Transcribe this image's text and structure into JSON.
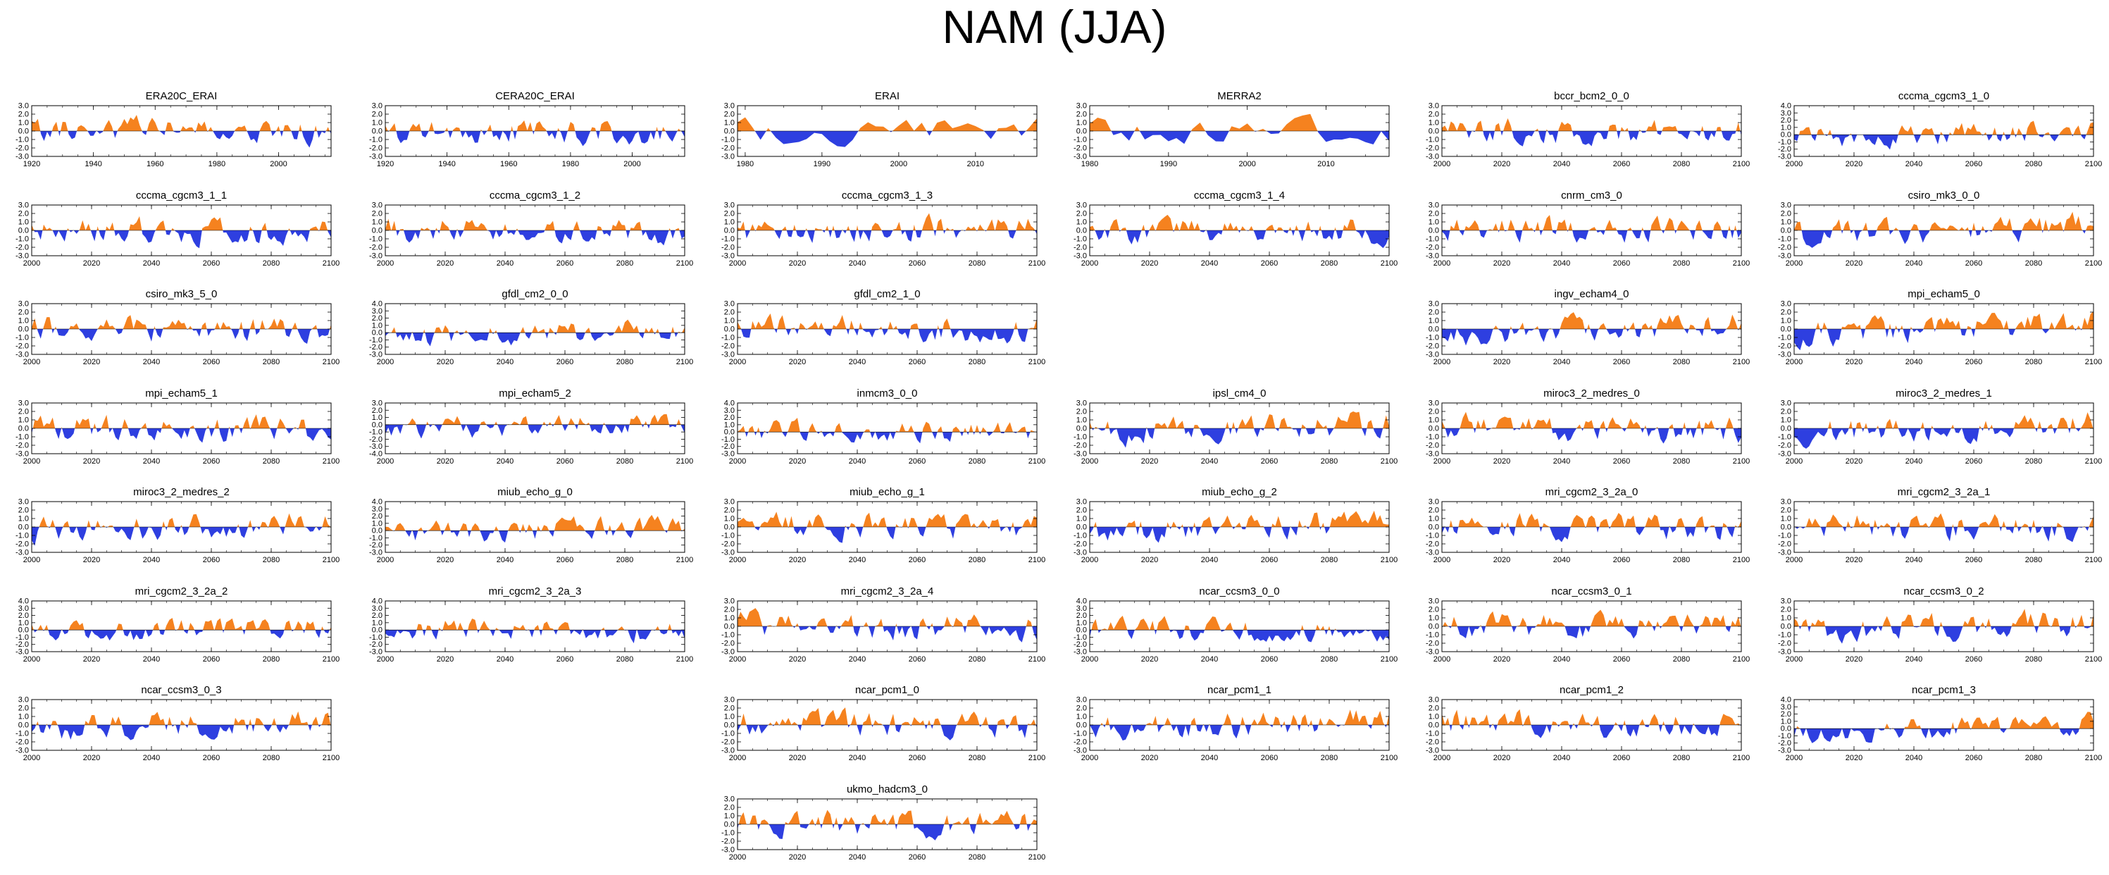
{
  "title": "NAM (JJA)",
  "colors": {
    "positive": "#f5821f",
    "negative": "#2e3fe0",
    "axis": "#000000"
  },
  "chart_data": [
    {
      "type": "area",
      "title": "ERA20C_ERAI",
      "xlim": [
        1920,
        2017
      ],
      "xticks": [
        "1920",
        "1940",
        "1960",
        "1980",
        "2000"
      ],
      "yticks": [
        "3.0",
        "2.0",
        "1.0",
        "0.0",
        "-1.0",
        "-2.0",
        "-3.0"
      ],
      "ylim": [
        -3,
        3
      ],
      "seed": 11
    },
    {
      "type": "area",
      "title": "CERA20C_ERAI",
      "xlim": [
        1920,
        2017
      ],
      "xticks": [
        "1920",
        "1940",
        "1960",
        "1980",
        "2000"
      ],
      "yticks": [
        "3.0",
        "2.0",
        "1.0",
        "0.0",
        "-1.0",
        "-2.0",
        "-3.0"
      ],
      "ylim": [
        -3,
        3
      ],
      "seed": 23
    },
    {
      "type": "area",
      "title": "ERAI",
      "xlim": [
        1979,
        2018
      ],
      "xticks": [
        "1980",
        "1990",
        "2000",
        "2010"
      ],
      "yticks": [
        "3.0",
        "2.0",
        "1.0",
        "0.0",
        "-1.0",
        "-2.0",
        "-3.0"
      ],
      "ylim": [
        -3,
        3
      ],
      "seed": 37
    },
    {
      "type": "area",
      "title": "MERRA2",
      "xlim": [
        1980,
        2018
      ],
      "xticks": [
        "1980",
        "1990",
        "2000",
        "2010"
      ],
      "yticks": [
        "3.0",
        "2.0",
        "1.0",
        "0.0",
        "-1.0",
        "-2.0",
        "-3.0"
      ],
      "ylim": [
        -3,
        3
      ],
      "seed": 41
    },
    {
      "type": "area",
      "title": "bccr_bcm2_0_0",
      "xlim": [
        2000,
        2100
      ],
      "xticks": [
        "2000",
        "2020",
        "2040",
        "2060",
        "2080",
        "2100"
      ],
      "yticks": [
        "3.0",
        "2.0",
        "1.0",
        "0.0",
        "-1.0",
        "-2.0",
        "-3.0"
      ],
      "ylim": [
        -3,
        3
      ],
      "seed": 53
    },
    {
      "type": "area",
      "title": "cccma_cgcm3_1_0",
      "xlim": [
        2000,
        2100
      ],
      "xticks": [
        "2000",
        "2020",
        "2040",
        "2060",
        "2080",
        "2100"
      ],
      "yticks": [
        "4.0",
        "3.0",
        "2.0",
        "1.0",
        "0.0",
        "-1.0",
        "-2.0",
        "-3.0"
      ],
      "ylim": [
        -3,
        4
      ],
      "seed": 61
    },
    {
      "type": "area",
      "title": "cccma_cgcm3_1_1",
      "xlim": [
        2000,
        2100
      ],
      "xticks": [
        "2000",
        "2020",
        "2040",
        "2060",
        "2080",
        "2100"
      ],
      "yticks": [
        "3.0",
        "2.0",
        "1.0",
        "0.0",
        "-1.0",
        "-2.0",
        "-3.0"
      ],
      "ylim": [
        -3,
        3
      ],
      "seed": 71
    },
    {
      "type": "area",
      "title": "cccma_cgcm3_1_2",
      "xlim": [
        2000,
        2100
      ],
      "xticks": [
        "2000",
        "2020",
        "2040",
        "2060",
        "2080",
        "2100"
      ],
      "yticks": [
        "3.0",
        "2.0",
        "1.0",
        "0.0",
        "-1.0",
        "-2.0",
        "-3.0"
      ],
      "ylim": [
        -3,
        3
      ],
      "seed": 83
    },
    {
      "type": "area",
      "title": "cccma_cgcm3_1_3",
      "xlim": [
        2000,
        2100
      ],
      "xticks": [
        "2000",
        "2020",
        "2040",
        "2060",
        "2080",
        "2100"
      ],
      "yticks": [
        "3.0",
        "2.0",
        "1.0",
        "0.0",
        "-1.0",
        "-2.0",
        "-3.0"
      ],
      "ylim": [
        -3,
        3
      ],
      "seed": 97
    },
    {
      "type": "area",
      "title": "cccma_cgcm3_1_4",
      "xlim": [
        2000,
        2100
      ],
      "xticks": [
        "2000",
        "2020",
        "2040",
        "2060",
        "2080",
        "2100"
      ],
      "yticks": [
        "3.0",
        "2.0",
        "1.0",
        "0.0",
        "-1.0",
        "-2.0",
        "-3.0"
      ],
      "ylim": [
        -3,
        3
      ],
      "seed": 101
    },
    {
      "type": "area",
      "title": "cnrm_cm3_0",
      "xlim": [
        2000,
        2100
      ],
      "xticks": [
        "2000",
        "2020",
        "2040",
        "2060",
        "2080",
        "2100"
      ],
      "yticks": [
        "3.0",
        "2.0",
        "1.0",
        "0.0",
        "-1.0",
        "-2.0",
        "-3.0"
      ],
      "ylim": [
        -3,
        3
      ],
      "seed": 113
    },
    {
      "type": "area",
      "title": "csiro_mk3_0_0",
      "xlim": [
        2000,
        2100
      ],
      "xticks": [
        "2000",
        "2020",
        "2040",
        "2060",
        "2080",
        "2100"
      ],
      "yticks": [
        "3.0",
        "2.0",
        "1.0",
        "0.0",
        "-1.0",
        "-2.0",
        "-3.0"
      ],
      "ylim": [
        -3,
        3
      ],
      "seed": 127
    },
    {
      "type": "area",
      "title": "csiro_mk3_5_0",
      "xlim": [
        2000,
        2100
      ],
      "xticks": [
        "2000",
        "2020",
        "2040",
        "2060",
        "2080",
        "2100"
      ],
      "yticks": [
        "3.0",
        "2.0",
        "1.0",
        "0.0",
        "-1.0",
        "-2.0",
        "-3.0"
      ],
      "ylim": [
        -3,
        3
      ],
      "seed": 131
    },
    {
      "type": "area",
      "title": "gfdl_cm2_0_0",
      "xlim": [
        2000,
        2100
      ],
      "xticks": [
        "2000",
        "2020",
        "2040",
        "2060",
        "2080",
        "2100"
      ],
      "yticks": [
        "4.0",
        "3.0",
        "2.0",
        "1.0",
        "0.0",
        "-1.0",
        "-2.0",
        "-3.0"
      ],
      "ylim": [
        -3,
        4
      ],
      "seed": 139
    },
    {
      "type": "area",
      "title": "gfdl_cm2_1_0",
      "xlim": [
        2000,
        2100
      ],
      "xticks": [
        "2000",
        "2020",
        "2040",
        "2060",
        "2080",
        "2100"
      ],
      "yticks": [
        "3.0",
        "2.0",
        "1.0",
        "0.0",
        "-1.0",
        "-2.0",
        "-3.0"
      ],
      "ylim": [
        -3,
        3
      ],
      "seed": 149
    },
    {
      "type": "area",
      "title": "ingv_echam4_0",
      "xlim": [
        2000,
        2100
      ],
      "xticks": [
        "2000",
        "2020",
        "2040",
        "2060",
        "2080",
        "2100"
      ],
      "yticks": [
        "3.0",
        "2.0",
        "1.0",
        "0.0",
        "-1.0",
        "-2.0",
        "-3.0"
      ],
      "ylim": [
        -3,
        3
      ],
      "seed": 151
    },
    {
      "type": "area",
      "title": "mpi_echam5_0",
      "xlim": [
        2000,
        2100
      ],
      "xticks": [
        "2000",
        "2020",
        "2040",
        "2060",
        "2080",
        "2100"
      ],
      "yticks": [
        "3.0",
        "2.0",
        "1.0",
        "0.0",
        "-1.0",
        "-2.0",
        "-3.0"
      ],
      "ylim": [
        -3,
        3
      ],
      "seed": 163
    },
    {
      "type": "area",
      "title": "mpi_echam5_1",
      "xlim": [
        2000,
        2100
      ],
      "xticks": [
        "2000",
        "2020",
        "2040",
        "2060",
        "2080",
        "2100"
      ],
      "yticks": [
        "3.0",
        "2.0",
        "1.0",
        "0.0",
        "-1.0",
        "-2.0",
        "-3.0"
      ],
      "ylim": [
        -3,
        3
      ],
      "seed": 173
    },
    {
      "type": "area",
      "title": "mpi_echam5_2",
      "xlim": [
        2000,
        2100
      ],
      "xticks": [
        "2000",
        "2020",
        "2040",
        "2060",
        "2080",
        "2100"
      ],
      "yticks": [
        "3.0",
        "2.0",
        "1.0",
        "0.0",
        "-1.0",
        "-2.0",
        "-3.0",
        "-4.0"
      ],
      "ylim": [
        -4,
        3
      ],
      "seed": 181
    },
    {
      "type": "area",
      "title": "inmcm3_0_0",
      "xlim": [
        2000,
        2100
      ],
      "xticks": [
        "2000",
        "2020",
        "2040",
        "2060",
        "2080",
        "2100"
      ],
      "yticks": [
        "4.0",
        "3.0",
        "2.0",
        "1.0",
        "0.0",
        "-1.0",
        "-2.0",
        "-3.0"
      ],
      "ylim": [
        -3,
        4
      ],
      "seed": 191
    },
    {
      "type": "area",
      "title": "ipsl_cm4_0",
      "xlim": [
        2000,
        2100
      ],
      "xticks": [
        "2000",
        "2020",
        "2040",
        "2060",
        "2080",
        "2100"
      ],
      "yticks": [
        "3.0",
        "2.0",
        "1.0",
        "0.0",
        "-1.0",
        "-2.0",
        "-3.0"
      ],
      "ylim": [
        -3,
        3
      ],
      "seed": 193
    },
    {
      "type": "area",
      "title": "miroc3_2_medres_0",
      "xlim": [
        2000,
        2100
      ],
      "xticks": [
        "2000",
        "2020",
        "2040",
        "2060",
        "2080",
        "2100"
      ],
      "yticks": [
        "3.0",
        "2.0",
        "1.0",
        "0.0",
        "-1.0",
        "-2.0",
        "-3.0"
      ],
      "ylim": [
        -3,
        3
      ],
      "seed": 197
    },
    {
      "type": "area",
      "title": "miroc3_2_medres_1",
      "xlim": [
        2000,
        2100
      ],
      "xticks": [
        "2000",
        "2020",
        "2040",
        "2060",
        "2080",
        "2100"
      ],
      "yticks": [
        "3.0",
        "2.0",
        "1.0",
        "0.0",
        "-1.0",
        "-2.0",
        "-3.0"
      ],
      "ylim": [
        -3,
        3
      ],
      "seed": 199
    },
    {
      "type": "area",
      "title": "miroc3_2_medres_2",
      "xlim": [
        2000,
        2100
      ],
      "xticks": [
        "2000",
        "2020",
        "2040",
        "2060",
        "2080",
        "2100"
      ],
      "yticks": [
        "3.0",
        "2.0",
        "1.0",
        "0.0",
        "-1.0",
        "-2.0",
        "-3.0"
      ],
      "ylim": [
        -3,
        3
      ],
      "seed": 211
    },
    {
      "type": "area",
      "title": "miub_echo_g_0",
      "xlim": [
        2000,
        2100
      ],
      "xticks": [
        "2000",
        "2020",
        "2040",
        "2060",
        "2080",
        "2100"
      ],
      "yticks": [
        "4.0",
        "3.0",
        "2.0",
        "1.0",
        "0.0",
        "-1.0",
        "-2.0",
        "-3.0"
      ],
      "ylim": [
        -3,
        4
      ],
      "seed": 223
    },
    {
      "type": "area",
      "title": "miub_echo_g_1",
      "xlim": [
        2000,
        2100
      ],
      "xticks": [
        "2000",
        "2020",
        "2040",
        "2060",
        "2080",
        "2100"
      ],
      "yticks": [
        "3.0",
        "2.0",
        "1.0",
        "0.0",
        "-1.0",
        "-2.0",
        "-3.0"
      ],
      "ylim": [
        -3,
        3
      ],
      "seed": 227
    },
    {
      "type": "area",
      "title": "miub_echo_g_2",
      "xlim": [
        2000,
        2100
      ],
      "xticks": [
        "2000",
        "2020",
        "2040",
        "2060",
        "2080",
        "2100"
      ],
      "yticks": [
        "3.0",
        "2.0",
        "1.0",
        "0.0",
        "-1.0",
        "-2.0",
        "-3.0"
      ],
      "ylim": [
        -3,
        3
      ],
      "seed": 229
    },
    {
      "type": "area",
      "title": "mri_cgcm2_3_2a_0",
      "xlim": [
        2000,
        2100
      ],
      "xticks": [
        "2000",
        "2020",
        "2040",
        "2060",
        "2080",
        "2100"
      ],
      "yticks": [
        "3.0",
        "2.0",
        "1.0",
        "0.0",
        "-1.0",
        "-2.0",
        "-3.0"
      ],
      "ylim": [
        -3,
        3
      ],
      "seed": 233
    },
    {
      "type": "area",
      "title": "mri_cgcm2_3_2a_1",
      "xlim": [
        2000,
        2100
      ],
      "xticks": [
        "2000",
        "2020",
        "2040",
        "2060",
        "2080",
        "2100"
      ],
      "yticks": [
        "3.0",
        "2.0",
        "1.0",
        "0.0",
        "-1.0",
        "-2.0",
        "-3.0"
      ],
      "ylim": [
        -3,
        3
      ],
      "seed": 239
    },
    {
      "type": "area",
      "title": "mri_cgcm2_3_2a_2",
      "xlim": [
        2000,
        2100
      ],
      "xticks": [
        "2000",
        "2020",
        "2040",
        "2060",
        "2080",
        "2100"
      ],
      "yticks": [
        "4.0",
        "3.0",
        "2.0",
        "1.0",
        "0.0",
        "-1.0",
        "-2.0",
        "-3.0"
      ],
      "ylim": [
        -3,
        4
      ],
      "seed": 241
    },
    {
      "type": "area",
      "title": "mri_cgcm2_3_2a_3",
      "xlim": [
        2000,
        2100
      ],
      "xticks": [
        "2000",
        "2020",
        "2040",
        "2060",
        "2080",
        "2100"
      ],
      "yticks": [
        "4.0",
        "3.0",
        "2.0",
        "1.0",
        "0.0",
        "-1.0",
        "-2.0",
        "-3.0"
      ],
      "ylim": [
        -3,
        4
      ],
      "seed": 251
    },
    {
      "type": "area",
      "title": "mri_cgcm2_3_2a_4",
      "xlim": [
        2000,
        2100
      ],
      "xticks": [
        "2000",
        "2020",
        "2040",
        "2060",
        "2080",
        "2100"
      ],
      "yticks": [
        "3.0",
        "2.0",
        "1.0",
        "0.0",
        "-1.0",
        "-2.0",
        "-3.0"
      ],
      "ylim": [
        -3,
        3
      ],
      "seed": 257
    },
    {
      "type": "area",
      "title": "ncar_ccsm3_0_0",
      "xlim": [
        2000,
        2100
      ],
      "xticks": [
        "2000",
        "2020",
        "2040",
        "2060",
        "2080",
        "2100"
      ],
      "yticks": [
        "4.0",
        "3.0",
        "2.0",
        "1.0",
        "0.0",
        "-1.0",
        "-2.0",
        "-3.0"
      ],
      "ylim": [
        -3,
        4
      ],
      "seed": 263
    },
    {
      "type": "area",
      "title": "ncar_ccsm3_0_1",
      "xlim": [
        2000,
        2100
      ],
      "xticks": [
        "2000",
        "2020",
        "2040",
        "2060",
        "2080",
        "2100"
      ],
      "yticks": [
        "3.0",
        "2.0",
        "1.0",
        "0.0",
        "-1.0",
        "-2.0",
        "-3.0"
      ],
      "ylim": [
        -3,
        3
      ],
      "seed": 269
    },
    {
      "type": "area",
      "title": "ncar_ccsm3_0_2",
      "xlim": [
        2000,
        2100
      ],
      "xticks": [
        "2000",
        "2020",
        "2040",
        "2060",
        "2080",
        "2100"
      ],
      "yticks": [
        "3.0",
        "2.0",
        "1.0",
        "0.0",
        "-1.0",
        "-2.0",
        "-3.0"
      ],
      "ylim": [
        -3,
        3
      ],
      "seed": 271
    },
    {
      "type": "area",
      "title": "ncar_ccsm3_0_3",
      "xlim": [
        2000,
        2100
      ],
      "xticks": [
        "2000",
        "2020",
        "2040",
        "2060",
        "2080",
        "2100"
      ],
      "yticks": [
        "3.0",
        "2.0",
        "1.0",
        "0.0",
        "-1.0",
        "-2.0",
        "-3.0"
      ],
      "ylim": [
        -3,
        3
      ],
      "seed": 277
    },
    {
      "type": "area",
      "title": "ncar_pcm1_0",
      "xlim": [
        2000,
        2100
      ],
      "xticks": [
        "2000",
        "2020",
        "2040",
        "2060",
        "2080",
        "2100"
      ],
      "yticks": [
        "3.0",
        "2.0",
        "1.0",
        "0.0",
        "-1.0",
        "-2.0",
        "-3.0"
      ],
      "ylim": [
        -3,
        3
      ],
      "seed": 281
    },
    {
      "type": "area",
      "title": "ncar_pcm1_1",
      "xlim": [
        2000,
        2100
      ],
      "xticks": [
        "2000",
        "2020",
        "2040",
        "2060",
        "2080",
        "2100"
      ],
      "yticks": [
        "3.0",
        "2.0",
        "1.0",
        "0.0",
        "-1.0",
        "-2.0",
        "-3.0"
      ],
      "ylim": [
        -3,
        3
      ],
      "seed": 283
    },
    {
      "type": "area",
      "title": "ncar_pcm1_2",
      "xlim": [
        2000,
        2100
      ],
      "xticks": [
        "2000",
        "2020",
        "2040",
        "2060",
        "2080",
        "2100"
      ],
      "yticks": [
        "3.0",
        "2.0",
        "1.0",
        "0.0",
        "-1.0",
        "-2.0",
        "-3.0"
      ],
      "ylim": [
        -3,
        3
      ],
      "seed": 293
    },
    {
      "type": "area",
      "title": "ncar_pcm1_3",
      "xlim": [
        2000,
        2100
      ],
      "xticks": [
        "2000",
        "2020",
        "2040",
        "2060",
        "2080",
        "2100"
      ],
      "yticks": [
        "4.0",
        "3.0",
        "2.0",
        "1.0",
        "0.0",
        "-1.0",
        "-2.0",
        "-3.0"
      ],
      "ylim": [
        -3,
        4
      ],
      "seed": 307
    },
    {
      "type": "area",
      "title": "ukmo_hadcm3_0",
      "xlim": [
        2000,
        2100
      ],
      "xticks": [
        "2000",
        "2020",
        "2040",
        "2060",
        "2080",
        "2100"
      ],
      "yticks": [
        "3.0",
        "2.0",
        "1.0",
        "0.0",
        "-1.0",
        "-2.0",
        "-3.0"
      ],
      "ylim": [
        -3,
        3
      ],
      "seed": 311
    }
  ]
}
